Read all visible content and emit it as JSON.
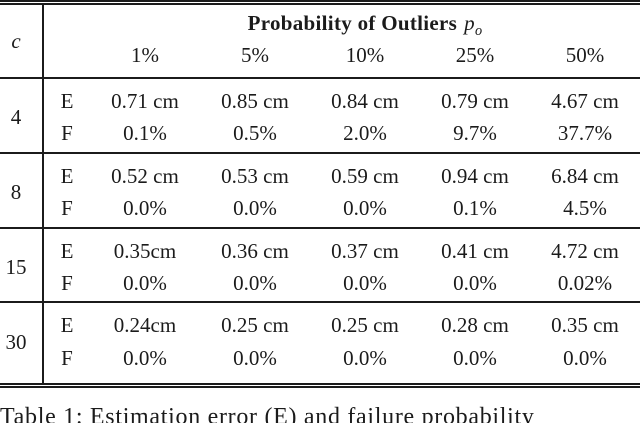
{
  "colors": {
    "text": "#1b1b1b",
    "background": "#ffffff"
  },
  "table": {
    "corner_label": "c",
    "header": {
      "title_bold": "Probability of Outliers",
      "math_p": "p",
      "math_sub": "o",
      "percent_columns": [
        "1%",
        "5%",
        "10%",
        "25%",
        "50%"
      ]
    },
    "row_labels": {
      "error": "E",
      "failure": "F"
    },
    "blocks": [
      {
        "c": "4",
        "E": [
          "0.71 cm",
          "0.85 cm",
          "0.84 cm",
          "0.79 cm",
          "4.67 cm"
        ],
        "F": [
          "0.1%",
          "0.5%",
          "2.0%",
          "9.7%",
          "37.7%"
        ]
      },
      {
        "c": "8",
        "E": [
          "0.52 cm",
          "0.53 cm",
          "0.59 cm",
          "0.94 cm",
          "6.84 cm"
        ],
        "F": [
          "0.0%",
          "0.0%",
          "0.0%",
          "0.1%",
          "4.5%"
        ]
      },
      {
        "c": "15",
        "E": [
          "0.35cm",
          "0.36 cm",
          "0.37 cm",
          "0.41 cm",
          "4.72 cm"
        ],
        "F": [
          "0.0%",
          "0.0%",
          "0.0%",
          "0.0%",
          "0.02%"
        ]
      },
      {
        "c": "30",
        "E": [
          "0.24cm",
          "0.25 cm",
          "0.25 cm",
          "0.28 cm",
          "0.35 cm"
        ],
        "F": [
          "0.0%",
          "0.0%",
          "0.0%",
          "0.0%",
          "0.0%"
        ]
      }
    ]
  },
  "caption": {
    "text": "Table 1: Estimation error (E) and failure probability"
  }
}
